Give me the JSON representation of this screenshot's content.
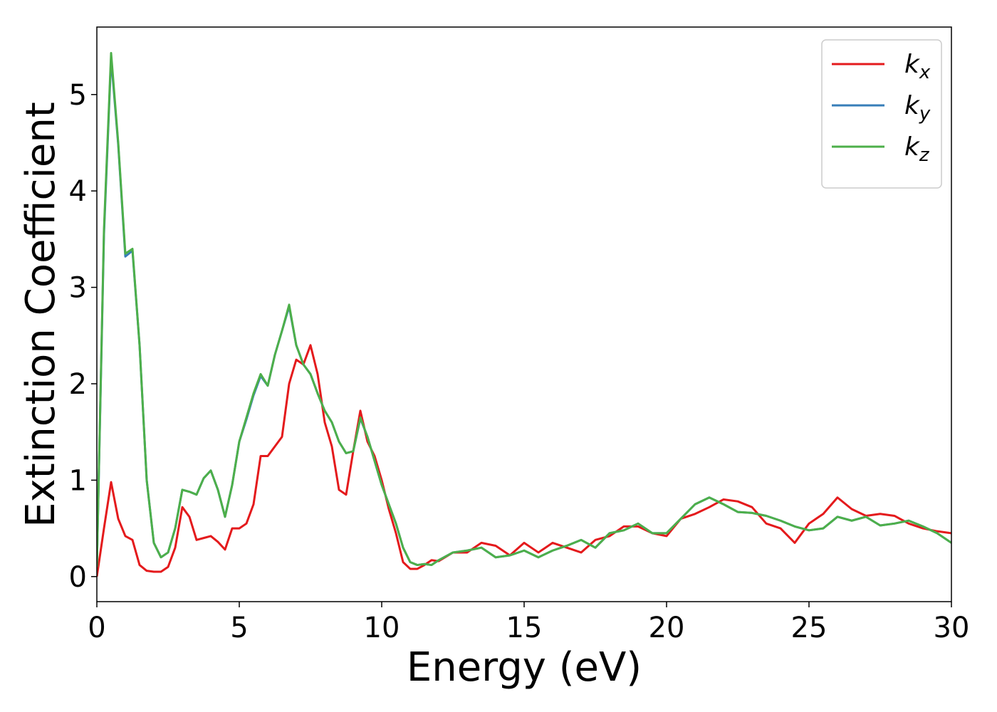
{
  "chart_data": {
    "type": "line",
    "xlabel": "Energy (eV)",
    "ylabel": "Extinction Coefficient",
    "x": [
      0,
      0.25,
      0.5,
      0.75,
      1.0,
      1.25,
      1.5,
      1.75,
      2.0,
      2.25,
      2.5,
      2.75,
      3.0,
      3.25,
      3.5,
      3.75,
      4.0,
      4.25,
      4.5,
      4.75,
      5.0,
      5.25,
      5.5,
      5.75,
      6.0,
      6.25,
      6.5,
      6.75,
      7.0,
      7.25,
      7.5,
      7.75,
      8.0,
      8.25,
      8.5,
      8.75,
      9.0,
      9.25,
      9.5,
      9.75,
      10.0,
      10.25,
      10.5,
      10.75,
      11.0,
      11.25,
      11.5,
      11.75,
      12.0,
      12.5,
      13,
      13.5,
      14,
      14.5,
      15,
      15.5,
      16,
      16.5,
      17,
      17.5,
      18,
      18.5,
      19,
      19.5,
      20,
      20.5,
      21,
      21.5,
      22,
      22.5,
      23,
      23.5,
      24,
      24.5,
      25,
      25.5,
      26,
      26.5,
      27,
      27.5,
      28,
      28.5,
      29,
      29.5,
      30
    ],
    "series": [
      {
        "name": "kx",
        "color": "#e41a1c",
        "values": [
          0.0,
          0.5,
          0.98,
          0.6,
          0.42,
          0.38,
          0.12,
          0.06,
          0.05,
          0.05,
          0.1,
          0.3,
          0.72,
          0.62,
          0.38,
          0.4,
          0.42,
          0.36,
          0.28,
          0.5,
          0.5,
          0.55,
          0.75,
          1.25,
          1.25,
          1.35,
          1.45,
          2.0,
          2.25,
          2.2,
          2.4,
          2.1,
          1.6,
          1.35,
          0.9,
          0.85,
          1.3,
          1.72,
          1.4,
          1.25,
          1.0,
          0.7,
          0.45,
          0.15,
          0.08,
          0.08,
          0.12,
          0.17,
          0.16,
          0.25,
          0.25,
          0.35,
          0.32,
          0.22,
          0.35,
          0.25,
          0.35,
          0.3,
          0.25,
          0.38,
          0.42,
          0.52,
          0.52,
          0.45,
          0.42,
          0.6,
          0.65,
          0.72,
          0.8,
          0.78,
          0.72,
          0.55,
          0.5,
          0.35,
          0.55,
          0.65,
          0.82,
          0.7,
          0.63,
          0.65,
          0.63,
          0.55,
          0.5,
          0.47,
          0.45
        ]
      },
      {
        "name": "ky",
        "color": "#377eb8",
        "values": [
          0.1,
          3.55,
          5.38,
          4.48,
          3.32,
          3.38,
          2.4,
          1.0,
          0.35,
          0.2,
          0.25,
          0.5,
          0.9,
          0.88,
          0.85,
          1.02,
          1.1,
          0.9,
          0.62,
          0.95,
          1.4,
          1.63,
          1.88,
          2.08,
          1.98,
          2.3,
          2.55,
          2.8,
          2.4,
          2.2,
          2.1,
          1.9,
          1.72,
          1.6,
          1.4,
          1.28,
          1.3,
          1.64,
          1.45,
          1.2,
          0.95,
          0.75,
          0.55,
          0.3,
          0.15,
          0.12,
          0.13,
          0.12,
          0.17,
          0.25,
          0.27,
          0.3,
          0.2,
          0.22,
          0.27,
          0.2,
          0.27,
          0.32,
          0.38,
          0.3,
          0.45,
          0.48,
          0.55,
          0.45,
          0.45,
          0.6,
          0.75,
          0.82,
          0.75,
          0.67,
          0.66,
          0.63,
          0.58,
          0.52,
          0.48,
          0.5,
          0.62,
          0.58,
          0.62,
          0.53,
          0.55,
          0.58,
          0.52,
          0.45,
          0.35
        ]
      },
      {
        "name": "kz",
        "color": "#4daf4a",
        "values": [
          0.1,
          3.6,
          5.43,
          4.5,
          3.35,
          3.4,
          2.4,
          1.0,
          0.35,
          0.2,
          0.25,
          0.5,
          0.9,
          0.88,
          0.85,
          1.02,
          1.1,
          0.9,
          0.62,
          0.95,
          1.4,
          1.65,
          1.9,
          2.1,
          1.98,
          2.3,
          2.55,
          2.82,
          2.4,
          2.2,
          2.1,
          1.9,
          1.72,
          1.6,
          1.4,
          1.28,
          1.3,
          1.65,
          1.45,
          1.2,
          0.95,
          0.75,
          0.55,
          0.3,
          0.15,
          0.12,
          0.13,
          0.12,
          0.17,
          0.25,
          0.27,
          0.3,
          0.2,
          0.22,
          0.27,
          0.2,
          0.27,
          0.32,
          0.38,
          0.3,
          0.45,
          0.48,
          0.55,
          0.45,
          0.45,
          0.6,
          0.75,
          0.82,
          0.75,
          0.67,
          0.66,
          0.63,
          0.58,
          0.52,
          0.48,
          0.5,
          0.62,
          0.58,
          0.62,
          0.53,
          0.55,
          0.58,
          0.52,
          0.45,
          0.35
        ]
      }
    ],
    "xlim": [
      0,
      30
    ],
    "xticks": [
      0,
      5,
      10,
      15,
      20,
      25,
      30
    ],
    "ylim": [
      -0.26,
      5.7
    ],
    "yticks": [
      0,
      1,
      2,
      3,
      4,
      5
    ],
    "grid": false,
    "legend": "upper right"
  }
}
